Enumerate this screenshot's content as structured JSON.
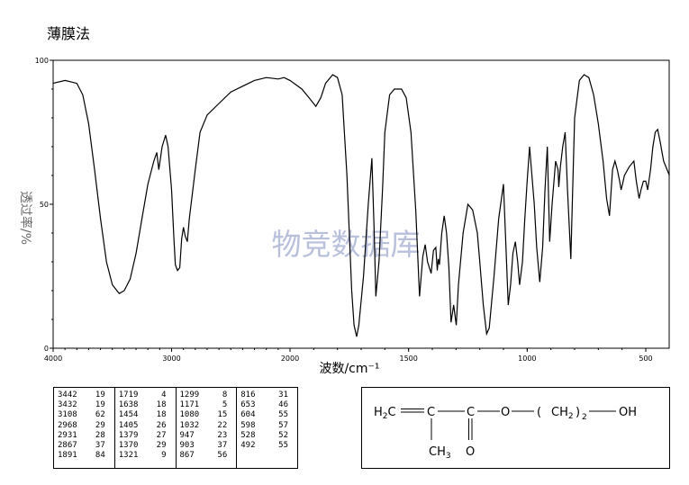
{
  "title": "薄膜法",
  "watermark": "物竞数据库",
  "chart_data": {
    "type": "line",
    "xlabel": "波数/cm⁻¹",
    "ylabel": "透过率/%",
    "xlim": [
      4000,
      400
    ],
    "ylim": [
      0,
      100
    ],
    "x_ticks": [
      "4000",
      "3000",
      "2000",
      "1500",
      "1000",
      "500"
    ],
    "y_ticks": [
      "0",
      "50",
      "100"
    ],
    "curve_color": "#000000",
    "watermark_color": "#b8c0dc",
    "spectrum": [
      [
        4000,
        92
      ],
      [
        3900,
        93
      ],
      [
        3800,
        92
      ],
      [
        3750,
        88
      ],
      [
        3700,
        78
      ],
      [
        3650,
        62
      ],
      [
        3600,
        45
      ],
      [
        3550,
        30
      ],
      [
        3500,
        22
      ],
      [
        3442,
        19
      ],
      [
        3400,
        20
      ],
      [
        3350,
        24
      ],
      [
        3300,
        33
      ],
      [
        3250,
        45
      ],
      [
        3200,
        57
      ],
      [
        3150,
        65
      ],
      [
        3125,
        68
      ],
      [
        3108,
        62
      ],
      [
        3080,
        70
      ],
      [
        3050,
        74
      ],
      [
        3030,
        70
      ],
      [
        3000,
        55
      ],
      [
        2980,
        38
      ],
      [
        2968,
        29
      ],
      [
        2950,
        27
      ],
      [
        2931,
        28
      ],
      [
        2915,
        38
      ],
      [
        2900,
        42
      ],
      [
        2885,
        39
      ],
      [
        2867,
        37
      ],
      [
        2850,
        45
      ],
      [
        2800,
        62
      ],
      [
        2760,
        75
      ],
      [
        2700,
        81
      ],
      [
        2600,
        85
      ],
      [
        2500,
        89
      ],
      [
        2400,
        91
      ],
      [
        2300,
        93
      ],
      [
        2200,
        94
      ],
      [
        2100,
        93.5
      ],
      [
        2050,
        94
      ],
      [
        2000,
        93
      ],
      [
        1950,
        90
      ],
      [
        1920,
        87
      ],
      [
        1891,
        84
      ],
      [
        1870,
        87
      ],
      [
        1850,
        92
      ],
      [
        1820,
        95
      ],
      [
        1800,
        94
      ],
      [
        1780,
        88
      ],
      [
        1760,
        60
      ],
      [
        1740,
        20
      ],
      [
        1730,
        8
      ],
      [
        1719,
        4
      ],
      [
        1710,
        8
      ],
      [
        1690,
        25
      ],
      [
        1670,
        50
      ],
      [
        1655,
        66
      ],
      [
        1645,
        40
      ],
      [
        1638,
        18
      ],
      [
        1625,
        30
      ],
      [
        1610,
        55
      ],
      [
        1600,
        75
      ],
      [
        1580,
        88
      ],
      [
        1560,
        90
      ],
      [
        1530,
        90
      ],
      [
        1510,
        87
      ],
      [
        1490,
        75
      ],
      [
        1470,
        48
      ],
      [
        1454,
        18
      ],
      [
        1440,
        32
      ],
      [
        1430,
        36
      ],
      [
        1420,
        30
      ],
      [
        1405,
        26
      ],
      [
        1395,
        34
      ],
      [
        1385,
        35
      ],
      [
        1379,
        27
      ],
      [
        1375,
        31
      ],
      [
        1370,
        29
      ],
      [
        1360,
        40
      ],
      [
        1350,
        46
      ],
      [
        1340,
        40
      ],
      [
        1330,
        28
      ],
      [
        1321,
        9
      ],
      [
        1310,
        15
      ],
      [
        1299,
        8
      ],
      [
        1290,
        22
      ],
      [
        1270,
        40
      ],
      [
        1250,
        50
      ],
      [
        1230,
        48
      ],
      [
        1210,
        40
      ],
      [
        1200,
        30
      ],
      [
        1185,
        15
      ],
      [
        1171,
        5
      ],
      [
        1160,
        7
      ],
      [
        1140,
        25
      ],
      [
        1120,
        45
      ],
      [
        1100,
        57
      ],
      [
        1080,
        15
      ],
      [
        1070,
        22
      ],
      [
        1060,
        33
      ],
      [
        1050,
        37
      ],
      [
        1040,
        30
      ],
      [
        1032,
        22
      ],
      [
        1020,
        30
      ],
      [
        1010,
        45
      ],
      [
        1000,
        58
      ],
      [
        990,
        70
      ],
      [
        980,
        60
      ],
      [
        970,
        50
      ],
      [
        960,
        35
      ],
      [
        947,
        23
      ],
      [
        935,
        35
      ],
      [
        925,
        55
      ],
      [
        915,
        70
      ],
      [
        905,
        37
      ],
      [
        895,
        50
      ],
      [
        880,
        65
      ],
      [
        870,
        62
      ],
      [
        867,
        56
      ],
      [
        860,
        63
      ],
      [
        850,
        70
      ],
      [
        840,
        75
      ],
      [
        830,
        55
      ],
      [
        816,
        31
      ],
      [
        810,
        50
      ],
      [
        800,
        80
      ],
      [
        780,
        93
      ],
      [
        760,
        95
      ],
      [
        740,
        94
      ],
      [
        720,
        88
      ],
      [
        700,
        78
      ],
      [
        680,
        65
      ],
      [
        665,
        52
      ],
      [
        653,
        46
      ],
      [
        640,
        62
      ],
      [
        630,
        65
      ],
      [
        620,
        62
      ],
      [
        610,
        58
      ],
      [
        604,
        55
      ],
      [
        598,
        57
      ],
      [
        590,
        60
      ],
      [
        570,
        63
      ],
      [
        550,
        65
      ],
      [
        540,
        58
      ],
      [
        528,
        52
      ],
      [
        520,
        55
      ],
      [
        510,
        58
      ],
      [
        500,
        58
      ],
      [
        492,
        55
      ],
      [
        480,
        62
      ],
      [
        470,
        70
      ],
      [
        460,
        75
      ],
      [
        450,
        76
      ],
      [
        440,
        72
      ],
      [
        425,
        65
      ],
      [
        410,
        62
      ],
      [
        400,
        60
      ]
    ]
  },
  "peak_table": [
    [
      [
        "3442",
        "19"
      ],
      [
        "3432",
        "19"
      ],
      [
        "3108",
        "62"
      ],
      [
        "2968",
        "29"
      ],
      [
        "2931",
        "28"
      ],
      [
        "2867",
        "37"
      ],
      [
        "1891",
        "84"
      ]
    ],
    [
      [
        "1719",
        "4"
      ],
      [
        "1638",
        "18"
      ],
      [
        "1454",
        "18"
      ],
      [
        "1405",
        "26"
      ],
      [
        "1379",
        "27"
      ],
      [
        "1370",
        "29"
      ],
      [
        "1321",
        "9"
      ]
    ],
    [
      [
        "1299",
        "8"
      ],
      [
        "1171",
        "5"
      ],
      [
        "1080",
        "15"
      ],
      [
        "1032",
        "22"
      ],
      [
        "947",
        "23"
      ],
      [
        "903",
        "37"
      ],
      [
        "867",
        "56"
      ]
    ],
    [
      [
        "816",
        "31"
      ],
      [
        "653",
        "46"
      ],
      [
        "604",
        "55"
      ],
      [
        "598",
        "57"
      ],
      [
        "528",
        "52"
      ],
      [
        "492",
        "55"
      ]
    ]
  ],
  "structure": {
    "h2c": "H",
    "h2c_sub": "2",
    "h2c_c": "C",
    "c1": "C",
    "c2": "C",
    "o_ester": "O",
    "paren_open": "(",
    "ch2": "CH",
    "ch2_sub": "2",
    "paren_close": ")",
    "n": "2",
    "oh": "OH",
    "ch3": "CH",
    "ch3_sub": "3",
    "o_carbonyl": "O"
  }
}
